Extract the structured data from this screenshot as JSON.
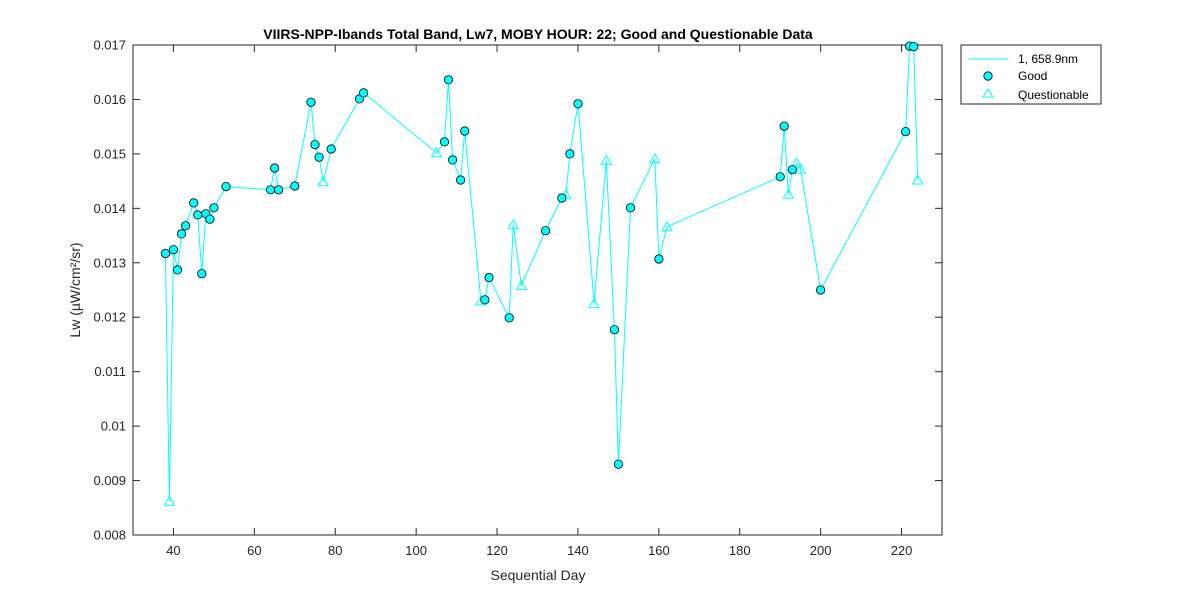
{
  "colors": {
    "series": "#00FFFF",
    "marker_fill": "#00FFFF",
    "marker_edge": "#000000",
    "axes": "#262626",
    "background": "#FFFFFF"
  },
  "chart_data": {
    "type": "scatter",
    "title": "VIIRS-NPP-Ibands Total Band,  Lw7, MOBY HOUR: 22;  Good and Questionable Data",
    "xlabel": "Sequential Day",
    "ylabel": "Lw (µW/cm²/sr)",
    "xlim": [
      30,
      230
    ],
    "ylim": [
      0.008,
      0.017
    ],
    "xticks": [
      40,
      60,
      80,
      100,
      120,
      140,
      160,
      180,
      200,
      220
    ],
    "yticks": [
      0.008,
      0.009,
      0.01,
      0.011,
      0.012,
      0.013,
      0.014,
      0.015,
      0.016,
      0.017
    ],
    "xtick_labels": [
      "40",
      "60",
      "80",
      "100",
      "120",
      "140",
      "160",
      "180",
      "200",
      "220"
    ],
    "ytick_labels": [
      "0.008",
      "0.009",
      "0.01",
      "0.011",
      "0.012",
      "0.013",
      "0.014",
      "0.015",
      "0.016",
      "0.017"
    ],
    "grid": false,
    "legend_position": "outside-top-right",
    "legend": [
      "1, 658.9nm",
      "Good",
      "Questionable"
    ],
    "series": [
      {
        "name": "1, 658.9nm",
        "style": "line",
        "points": [
          [
            38,
            0.01317
          ],
          [
            39,
            0.00862
          ],
          [
            40,
            0.01324
          ],
          [
            41,
            0.01287
          ],
          [
            42,
            0.01353
          ],
          [
            43,
            0.01368
          ],
          [
            45,
            0.0141
          ],
          [
            46,
            0.01388
          ],
          [
            47,
            0.0128
          ],
          [
            48,
            0.0139
          ],
          [
            49,
            0.0138
          ],
          [
            50,
            0.01401
          ],
          [
            53,
            0.0144
          ],
          [
            64,
            0.01434
          ],
          [
            65,
            0.01474
          ],
          [
            66,
            0.01434
          ],
          [
            70,
            0.01441
          ],
          [
            74,
            0.01595
          ],
          [
            75,
            0.01517
          ],
          [
            76,
            0.01494
          ],
          [
            77,
            0.01449
          ],
          [
            79,
            0.01509
          ],
          [
            86,
            0.01601
          ],
          [
            87,
            0.01612
          ],
          [
            105,
            0.01502
          ],
          [
            107,
            0.01522
          ],
          [
            108,
            0.01636
          ],
          [
            109,
            0.01489
          ],
          [
            111,
            0.01452
          ],
          [
            112,
            0.01542
          ],
          [
            116,
            0.0123
          ],
          [
            117,
            0.01232
          ],
          [
            118,
            0.01273
          ],
          [
            123,
            0.01199
          ],
          [
            124,
            0.0137
          ],
          [
            126,
            0.01258
          ],
          [
            132,
            0.01359
          ],
          [
            136,
            0.01419
          ],
          [
            137,
            0.01425
          ],
          [
            138,
            0.015
          ],
          [
            140,
            0.01592
          ],
          [
            144,
            0.01225
          ],
          [
            147,
            0.01488
          ],
          [
            149,
            0.01177
          ],
          [
            150,
            0.0093
          ],
          [
            153,
            0.01401
          ],
          [
            159,
            0.01491
          ],
          [
            160,
            0.01307
          ],
          [
            162,
            0.01366
          ],
          [
            190,
            0.01458
          ],
          [
            191,
            0.01551
          ],
          [
            192,
            0.01426
          ],
          [
            193,
            0.01471
          ],
          [
            194,
            0.01483
          ],
          [
            195,
            0.01472
          ],
          [
            200,
            0.0125
          ],
          [
            221,
            0.01541
          ],
          [
            222,
            0.01698
          ],
          [
            223,
            0.01697
          ],
          [
            224,
            0.01452
          ]
        ]
      },
      {
        "name": "Good",
        "style": "circle",
        "points": [
          [
            38,
            0.01317
          ],
          [
            40,
            0.01324
          ],
          [
            41,
            0.01287
          ],
          [
            42,
            0.01353
          ],
          [
            43,
            0.01368
          ],
          [
            45,
            0.0141
          ],
          [
            46,
            0.01388
          ],
          [
            47,
            0.0128
          ],
          [
            48,
            0.0139
          ],
          [
            49,
            0.0138
          ],
          [
            50,
            0.01401
          ],
          [
            53,
            0.0144
          ],
          [
            64,
            0.01434
          ],
          [
            65,
            0.01474
          ],
          [
            66,
            0.01434
          ],
          [
            70,
            0.01441
          ],
          [
            74,
            0.01595
          ],
          [
            75,
            0.01517
          ],
          [
            76,
            0.01494
          ],
          [
            79,
            0.01509
          ],
          [
            86,
            0.01601
          ],
          [
            87,
            0.01612
          ],
          [
            107,
            0.01522
          ],
          [
            108,
            0.01636
          ],
          [
            109,
            0.01489
          ],
          [
            111,
            0.01452
          ],
          [
            112,
            0.01542
          ],
          [
            117,
            0.01232
          ],
          [
            118,
            0.01273
          ],
          [
            123,
            0.01199
          ],
          [
            132,
            0.01359
          ],
          [
            136,
            0.01419
          ],
          [
            138,
            0.015
          ],
          [
            140,
            0.01592
          ],
          [
            149,
            0.01177
          ],
          [
            150,
            0.0093
          ],
          [
            153,
            0.01401
          ],
          [
            160,
            0.01307
          ],
          [
            190,
            0.01458
          ],
          [
            191,
            0.01551
          ],
          [
            193,
            0.01471
          ],
          [
            200,
            0.0125
          ],
          [
            221,
            0.01541
          ],
          [
            222,
            0.01698
          ],
          [
            223,
            0.01697
          ]
        ]
      },
      {
        "name": "Questionable",
        "style": "triangle",
        "points": [
          [
            39,
            0.00862
          ],
          [
            77,
            0.01449
          ],
          [
            105,
            0.01502
          ],
          [
            116,
            0.0123
          ],
          [
            124,
            0.0137
          ],
          [
            126,
            0.01258
          ],
          [
            137,
            0.01425
          ],
          [
            144,
            0.01225
          ],
          [
            147,
            0.01488
          ],
          [
            159,
            0.01491
          ],
          [
            162,
            0.01366
          ],
          [
            192,
            0.01426
          ],
          [
            194,
            0.01483
          ],
          [
            195,
            0.01472
          ],
          [
            224,
            0.01452
          ]
        ]
      }
    ]
  }
}
